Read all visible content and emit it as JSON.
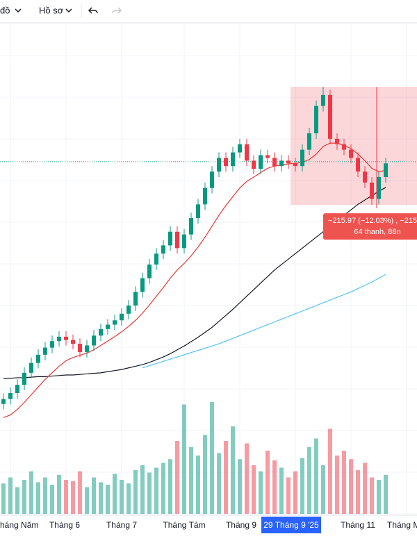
{
  "toolbar": {
    "items": [
      "đồ",
      "Hồ sơ"
    ]
  },
  "chart_data": {
    "type": "candlestick",
    "ylim": [
      1014,
      1903
    ],
    "open": [
      1215,
      1224,
      1235,
      1250,
      1272,
      1290,
      1305,
      1318,
      1330,
      1338,
      1332,
      1325,
      1310,
      1322,
      1340,
      1352,
      1360,
      1368,
      1380,
      1395,
      1420,
      1445,
      1470,
      1490,
      1505,
      1530,
      1500,
      1525,
      1555,
      1580,
      1610,
      1640,
      1665,
      1650,
      1675,
      1690,
      1660,
      1645,
      1670,
      1665,
      1650,
      1660,
      1655,
      1650,
      1680,
      1710,
      1760,
      1780,
      1700,
      1690,
      1680,
      1665,
      1640,
      1620,
      1590,
      1630
    ],
    "high": [
      1234,
      1245,
      1260,
      1282,
      1300,
      1315,
      1328,
      1340,
      1348,
      1348,
      1342,
      1335,
      1332,
      1350,
      1362,
      1370,
      1378,
      1390,
      1405,
      1430,
      1455,
      1480,
      1500,
      1515,
      1540,
      1540,
      1535,
      1565,
      1590,
      1620,
      1650,
      1675,
      1675,
      1685,
      1700,
      1700,
      1670,
      1680,
      1680,
      1675,
      1670,
      1670,
      1665,
      1690,
      1720,
      1770,
      1795,
      1790,
      1710,
      1700,
      1690,
      1675,
      1650,
      1630,
      1640,
      1665
    ],
    "low": [
      1205,
      1214,
      1225,
      1240,
      1262,
      1280,
      1295,
      1308,
      1320,
      1322,
      1315,
      1300,
      1300,
      1312,
      1330,
      1342,
      1350,
      1358,
      1370,
      1385,
      1410,
      1435,
      1460,
      1480,
      1495,
      1490,
      1490,
      1515,
      1545,
      1570,
      1600,
      1630,
      1640,
      1640,
      1665,
      1650,
      1635,
      1635,
      1655,
      1640,
      1640,
      1645,
      1640,
      1640,
      1670,
      1700,
      1750,
      1690,
      1680,
      1670,
      1655,
      1630,
      1610,
      1579,
      1580,
      1620
    ],
    "close": [
      1224,
      1235,
      1250,
      1272,
      1290,
      1305,
      1318,
      1330,
      1338,
      1332,
      1325,
      1310,
      1322,
      1340,
      1352,
      1360,
      1368,
      1380,
      1395,
      1420,
      1445,
      1470,
      1490,
      1505,
      1530,
      1500,
      1525,
      1555,
      1580,
      1610,
      1640,
      1665,
      1650,
      1675,
      1690,
      1660,
      1645,
      1670,
      1665,
      1650,
      1660,
      1655,
      1650,
      1680,
      1710,
      1760,
      1780,
      1700,
      1690,
      1680,
      1665,
      1640,
      1620,
      1590,
      1630,
      1655
    ],
    "up_color": "#089981",
    "down_color": "#f23645",
    "volume": [
      25,
      30,
      22,
      28,
      35,
      26,
      30,
      24,
      32,
      28,
      27,
      35,
      22,
      30,
      26,
      24,
      33,
      28,
      25,
      36,
      40,
      34,
      38,
      42,
      45,
      60,
      90,
      55,
      48,
      65,
      92,
      50,
      60,
      72,
      45,
      58,
      40,
      35,
      52,
      44,
      38,
      30,
      35,
      46,
      55,
      62,
      40,
      70,
      48,
      52,
      45,
      36,
      42,
      30,
      28,
      32
    ],
    "vlim": [
      0,
      100
    ],
    "lines": [
      {
        "color": "#131722",
        "values": [
          1262,
          1262,
          1263,
          1263,
          1264,
          1265,
          1265,
          1266,
          1267,
          1268,
          1268,
          1269,
          1270,
          1271,
          1272,
          1274,
          1276,
          1278,
          1281,
          1284,
          1287,
          1291,
          1296,
          1301,
          1307,
          1314,
          1321,
          1329,
          1337,
          1346,
          1355,
          1366,
          1377,
          1388,
          1400,
          1412,
          1424,
          1436,
          1448,
          1460,
          1470,
          1480,
          1490,
          1500,
          1510,
          1520,
          1530,
          1540,
          1550,
          1560,
          1570,
          1580,
          1588,
          1596,
          1604,
          1611
        ]
      },
      {
        "color": "#4fc3f7",
        "values": [
          null,
          null,
          null,
          null,
          null,
          null,
          null,
          null,
          null,
          null,
          null,
          null,
          null,
          null,
          null,
          null,
          null,
          null,
          null,
          null,
          1281,
          1285,
          1289,
          1293,
          1297,
          1301,
          1305,
          1309,
          1313,
          1317,
          1321,
          1325,
          1330,
          1335,
          1340,
          1345,
          1350,
          1355,
          1360,
          1365,
          1370,
          1375,
          1380,
          1385,
          1390,
          1395,
          1400,
          1405,
          1410,
          1415,
          1420,
          1426,
          1432,
          1438,
          1445,
          1452
        ]
      },
      {
        "color": "#e53935",
        "values": [
          1190,
          1195,
          1205,
          1218,
          1232,
          1246,
          1260,
          1272,
          1284,
          1294,
          1300,
          1304,
          1308,
          1314,
          1322,
          1330,
          1338,
          1347,
          1357,
          1368,
          1381,
          1396,
          1412,
          1428,
          1445,
          1460,
          1472,
          1486,
          1502,
          1520,
          1540,
          1560,
          1578,
          1594,
          1610,
          1622,
          1630,
          1638,
          1646,
          1650,
          1652,
          1654,
          1655,
          1657,
          1662,
          1672,
          1686,
          1692,
          1692,
          1688,
          1682,
          1672,
          1660,
          1646,
          1640,
          1642
        ]
      }
    ],
    "price_line": 1658,
    "measure": {
      "high": 1795,
      "low": 1579,
      "label": "−215.97 (−12.03%) , −215",
      "sublabel": "64 thanh, 88n"
    },
    "x_labels": [
      "háng Năm",
      "Tháng 6",
      "Tháng 7",
      "Tháng Tám",
      "Tháng 9",
      "29 Tháng 9 '25",
      "Tháng 11",
      "Tháng M"
    ]
  }
}
